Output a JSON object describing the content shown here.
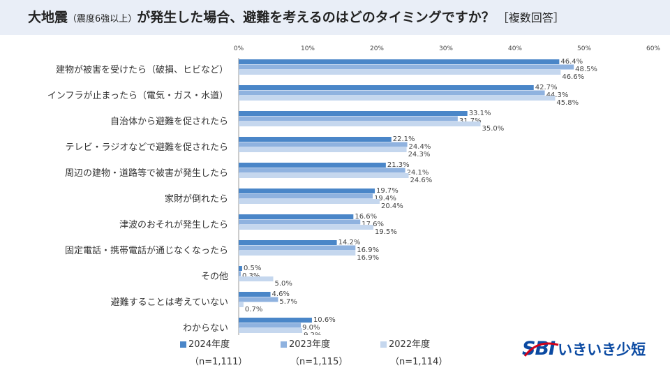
{
  "title": {
    "main_a": "大地震",
    "sub": "（震度6強以上）",
    "main_b": "が発生した場合、避難を考えるのはどのタイミングですか？",
    "tag": "［複数回答］"
  },
  "legend": [
    {
      "label": "2024年度",
      "n": "（n=1,111）",
      "color": "#4a86c8"
    },
    {
      "label": "2023年度",
      "n": "（n=1,115）",
      "color": "#8fb2df"
    },
    {
      "label": "2022年度",
      "n": "（n=1,114）",
      "color": "#c5d7ee"
    }
  ],
  "logo": {
    "brand": "SBI",
    "name": "いきいき少短",
    "color": "#0b4aa2"
  },
  "chart_data": {
    "type": "bar",
    "orientation": "horizontal",
    "title": "大地震（震度6強以上）が発生した場合、避難を考えるのはどのタイミングですか？",
    "xlim": [
      0,
      60
    ],
    "ticks": [
      "0%",
      "10%",
      "20%",
      "30%",
      "40%",
      "50%",
      "60%"
    ],
    "tick_values": [
      0,
      10,
      20,
      30,
      40,
      50,
      60
    ],
    "categories": [
      "建物が被害を受けたら（破損、ヒビなど）",
      "インフラが止まったら（電気・ガス・水道）",
      "自治体から避難を促されたら",
      "テレビ・ラジオなどで避難を促されたら",
      "周辺の建物・道路等で被害が発生したら",
      "家財が倒れたら",
      "津波のおそれが発生したら",
      "固定電話・携帯電話が通じなくなったら",
      "その他",
      "避難することは考えていない",
      "わからない"
    ],
    "series": [
      {
        "name": "2024年度",
        "color": "#4a86c8",
        "values": [
          46.4,
          42.7,
          33.1,
          22.1,
          21.3,
          19.7,
          16.6,
          14.2,
          0.5,
          4.6,
          10.6
        ],
        "labels": [
          "46.4%",
          "42.7%",
          "33.1%",
          "22.1%",
          "21.3%",
          "19.7%",
          "16.6%",
          "14.2%",
          "0.5%",
          "4.6%",
          "10.6%"
        ]
      },
      {
        "name": "2023年度",
        "color": "#8fb2df",
        "values": [
          48.5,
          44.3,
          31.7,
          24.4,
          24.1,
          19.4,
          17.6,
          16.9,
          0.3,
          5.7,
          9.0
        ],
        "labels": [
          "48.5%",
          "44.3%",
          "31.7%",
          "24.4%",
          "24.1%",
          "19.4%",
          "17.6%",
          "16.9%",
          "0.3%",
          "5.7%",
          "9.0%"
        ]
      },
      {
        "name": "2022年度",
        "color": "#c5d7ee",
        "values": [
          46.6,
          45.8,
          35.0,
          24.3,
          24.6,
          20.4,
          19.5,
          16.9,
          5.0,
          0.7,
          9.2
        ],
        "labels": [
          "46.6%",
          "45.8%",
          "35.0%",
          "24.3%",
          "24.6%",
          "20.4%",
          "19.5%",
          "16.9%",
          "5.0%",
          "0.7%",
          "9.2%"
        ]
      }
    ]
  }
}
